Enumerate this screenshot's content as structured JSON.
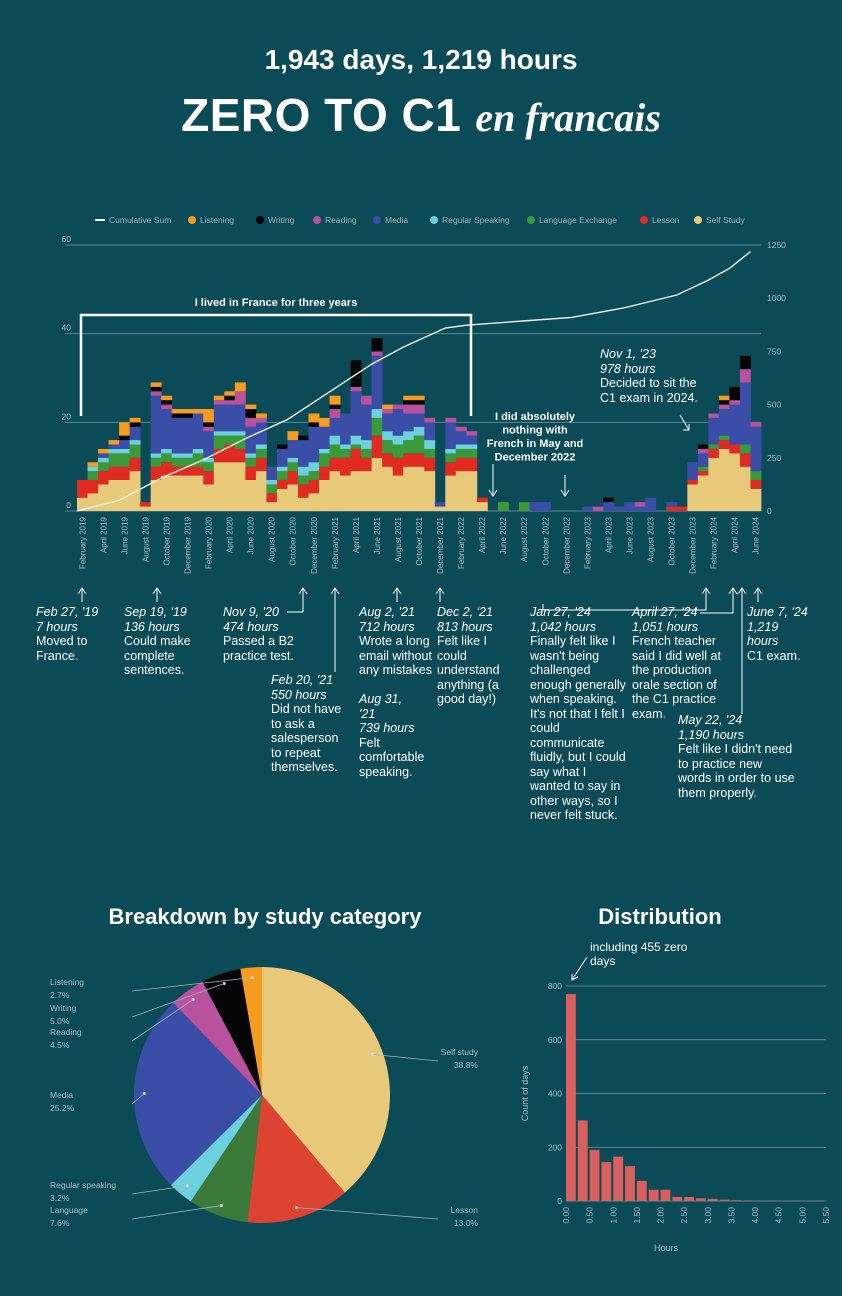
{
  "header": {
    "subtitle": "1,943 days, 1,219 hours",
    "title_main": "ZERO TO C1",
    "title_script": "en francais"
  },
  "colors": {
    "background": "#0b4a57",
    "self_study": "#e8c97a",
    "lesson": "#e02a22",
    "language_exchange": "#3a9a3a",
    "regular_speaking": "#6dd0de",
    "media": "#3a4ea8",
    "reading": "#b8529e",
    "writing": "#050505",
    "listening": "#f59c1e",
    "hist_bar": "#d9605e"
  },
  "legend": [
    "Cumulative Sum",
    "Listening",
    "Writing",
    "Reading",
    "Media",
    "Regular Speaking",
    "Language Exchange",
    "Lesson",
    "Self Study"
  ],
  "chart_data": [
    {
      "type": "bar",
      "stacked": true,
      "title": "",
      "ylim": [
        0,
        60
      ],
      "y2lim": [
        0,
        1250
      ],
      "y_ticks": [
        0,
        20,
        40,
        60
      ],
      "y2_ticks": [
        0,
        250,
        500,
        750,
        1000,
        1250
      ],
      "x_tick_labels": [
        "February 2019",
        "April 2019",
        "June 2019",
        "August 2019",
        "October 2019",
        "December 2019",
        "February 2020",
        "April 2020",
        "June 2020",
        "August 2020",
        "October 2020",
        "December 2020",
        "February 2021",
        "April 2021",
        "June 2021",
        "August 2021",
        "October 2021",
        "December 2021",
        "February 2022",
        "April 2022",
        "June 2022",
        "August 2022",
        "October 2022",
        "December 2022",
        "February 2023",
        "April 2023",
        "June 2023",
        "August 2023",
        "October 2023",
        "December 2023",
        "February 2024",
        "April 2024",
        "June 2024"
      ],
      "categories": [
        "2019-02",
        "2019-03",
        "2019-04",
        "2019-05",
        "2019-06",
        "2019-07",
        "2019-08",
        "2019-09",
        "2019-10",
        "2019-11",
        "2019-12",
        "2020-01",
        "2020-02",
        "2020-03",
        "2020-04",
        "2020-05",
        "2020-06",
        "2020-07",
        "2020-08",
        "2020-09",
        "2020-10",
        "2020-11",
        "2020-12",
        "2021-01",
        "2021-02",
        "2021-03",
        "2021-04",
        "2021-05",
        "2021-06",
        "2021-07",
        "2021-08",
        "2021-09",
        "2021-10",
        "2021-11",
        "2021-12",
        "2022-01",
        "2022-02",
        "2022-03",
        "2022-04",
        "2022-05",
        "2022-06",
        "2022-07",
        "2022-08",
        "2022-09",
        "2022-10",
        "2022-11",
        "2022-12",
        "2023-01",
        "2023-02",
        "2023-03",
        "2023-04",
        "2023-05",
        "2023-06",
        "2023-07",
        "2023-08",
        "2023-09",
        "2023-10",
        "2023-11",
        "2023-12",
        "2024-01",
        "2024-02",
        "2024-03",
        "2024-04",
        "2024-05",
        "2024-06"
      ],
      "series": [
        {
          "name": "Self Study",
          "values": [
            3,
            4,
            6,
            7,
            7,
            9,
            1,
            7,
            8,
            8,
            8,
            8,
            6,
            11,
            11,
            11,
            7,
            9,
            2,
            5,
            6,
            3,
            4,
            7,
            9,
            8,
            9,
            9,
            12,
            10,
            8,
            10,
            10,
            9,
            1,
            8,
            9,
            9,
            2,
            0,
            0,
            0,
            0,
            0,
            0,
            0,
            0,
            0,
            0,
            0,
            0,
            0,
            0,
            0,
            0,
            0,
            0,
            0,
            6,
            8,
            12,
            14,
            13,
            10,
            5
          ]
        },
        {
          "name": "Lesson",
          "values": [
            4,
            3,
            3,
            3,
            3,
            3,
            1,
            3,
            3,
            2,
            2,
            2,
            3,
            3,
            4,
            3,
            3,
            3,
            2,
            2,
            3,
            3,
            3,
            3,
            3,
            4,
            5,
            3,
            5,
            3,
            4,
            3,
            3,
            3,
            0,
            3,
            3,
            3,
            1,
            0,
            0,
            0,
            0,
            0,
            0,
            0,
            0,
            0,
            0,
            0,
            0,
            0,
            0,
            0,
            0,
            0,
            1,
            1,
            1,
            1,
            2,
            2,
            2,
            3,
            2
          ]
        },
        {
          "name": "Language Exchange",
          "values": [
            0,
            2,
            2,
            3,
            3,
            3,
            0,
            2,
            2,
            2,
            2,
            3,
            2,
            3,
            2,
            3,
            2,
            2,
            2,
            2,
            2,
            2,
            2,
            3,
            3,
            2,
            1,
            2,
            4,
            3,
            3,
            3,
            4,
            2,
            0,
            2,
            2,
            2,
            0,
            0,
            2,
            0,
            2,
            0,
            0,
            0,
            0,
            0,
            0,
            0,
            0,
            0,
            0,
            0,
            0,
            0,
            0,
            0,
            0,
            1,
            1,
            1,
            0,
            2,
            2
          ]
        },
        {
          "name": "Regular Speaking",
          "values": [
            0,
            1,
            1,
            1,
            1,
            1,
            0,
            1,
            1,
            1,
            1,
            1,
            1,
            1,
            1,
            1,
            1,
            1,
            1,
            1,
            1,
            2,
            2,
            1,
            2,
            1,
            2,
            2,
            2,
            2,
            2,
            2,
            2,
            2,
            0,
            1,
            1,
            1,
            0,
            0,
            0,
            0,
            0,
            0,
            0,
            0,
            0,
            0,
            0,
            0,
            0,
            0,
            0,
            0,
            0,
            0,
            0,
            0,
            0,
            0,
            0,
            0,
            0,
            0,
            0
          ]
        },
        {
          "name": "Media",
          "values": [
            0,
            0,
            1,
            1,
            2,
            3,
            0,
            13,
            9,
            8,
            8,
            8,
            6,
            6,
            6,
            6,
            6,
            5,
            3,
            4,
            4,
            6,
            8,
            5,
            4,
            7,
            10,
            8,
            12,
            4,
            6,
            4,
            3,
            4,
            1,
            6,
            3,
            2,
            0,
            0,
            0,
            0,
            0,
            2,
            2,
            0,
            0,
            0,
            1,
            0,
            2,
            1,
            2,
            1,
            3,
            0,
            1,
            0,
            4,
            3,
            6,
            6,
            9,
            14,
            10
          ]
        },
        {
          "name": "Reading",
          "values": [
            0,
            0,
            0,
            0,
            0,
            0,
            0,
            1,
            1,
            0,
            0,
            0,
            1,
            1,
            1,
            3,
            2,
            1,
            0,
            0,
            0,
            0,
            0,
            0,
            2,
            0,
            1,
            2,
            1,
            1,
            1,
            2,
            2,
            1,
            0,
            1,
            1,
            1,
            0,
            0,
            0,
            0,
            0,
            0,
            0,
            0,
            0,
            0,
            0,
            1,
            0,
            0,
            0,
            1,
            0,
            0,
            0,
            0,
            0,
            1,
            1,
            1,
            1,
            3,
            1
          ]
        },
        {
          "name": "Writing",
          "values": [
            0,
            0,
            0,
            0,
            1,
            1,
            0,
            1,
            1,
            1,
            1,
            0,
            1,
            0,
            1,
            0,
            2,
            0,
            0,
            1,
            0,
            1,
            1,
            0,
            1,
            0,
            6,
            0,
            3,
            0,
            0,
            1,
            1,
            0,
            0,
            0,
            0,
            0,
            0,
            0,
            0,
            0,
            0,
            0,
            0,
            0,
            0,
            0,
            0,
            0,
            1,
            0,
            0,
            0,
            0,
            0,
            0,
            0,
            0,
            1,
            0,
            1,
            3,
            3,
            0
          ]
        },
        {
          "name": "Listening",
          "values": [
            0,
            1,
            1,
            1,
            3,
            1,
            0,
            1,
            1,
            1,
            1,
            1,
            3,
            1,
            1,
            2,
            1,
            1,
            0,
            0,
            2,
            0,
            2,
            2,
            2,
            0,
            0,
            0,
            0,
            1,
            0,
            1,
            1,
            0,
            0,
            0,
            0,
            0,
            0,
            0,
            0,
            0,
            0,
            0,
            0,
            0,
            0,
            0,
            0,
            0,
            0,
            0,
            0,
            0,
            0,
            0,
            0,
            0,
            0,
            0,
            0,
            1,
            0,
            0,
            0
          ]
        }
      ],
      "cumulative_sum": {
        "name": "Cumulative Sum",
        "x": [
          "2019-02",
          "2019-06",
          "2019-10",
          "2020-02",
          "2020-06",
          "2020-10",
          "2021-02",
          "2021-06",
          "2021-09",
          "2022-01",
          "2022-03",
          "2022-09",
          "2023-01",
          "2023-06",
          "2023-11",
          "2024-02",
          "2024-04",
          "2024-06"
        ],
        "values": [
          0,
          50,
          155,
          240,
          340,
          430,
          560,
          690,
          770,
          860,
          873,
          895,
          910,
          955,
          1015,
          1085,
          1140,
          1219
        ]
      },
      "bracket_label": "I lived in France for three years",
      "gap_note": "I did absolutely nothing with French in May and December 2022",
      "annotations": [
        {
          "date": "Feb 27, '19",
          "hours": "7 hours",
          "text": "Moved to France."
        },
        {
          "date": "Sep 19, '19",
          "hours": "136 hours",
          "text": "Could make complete sentences."
        },
        {
          "date": "Nov 9, '20",
          "hours": "474 hours",
          "text": "Passed a B2 practice test."
        },
        {
          "date": "Feb 20, '21",
          "hours": "550 hours",
          "text": "Did not have to ask a salesperson to repeat themselves."
        },
        {
          "date": "Aug 2, '21",
          "hours": "712 hours",
          "text": "Wrote a long email without any mistakes"
        },
        {
          "date": "Aug 31, '21",
          "hours": "739 hours",
          "text": "Felt comfortable speaking."
        },
        {
          "date": "Dec 2, '21",
          "hours": "813 hours",
          "text": "Felt like I could understand anything (a good day!)"
        },
        {
          "date": "Nov 1, '23",
          "hours": "978 hours",
          "text": "Decided to sit the C1 exam in 2024."
        },
        {
          "date": "Jan 27, '24",
          "hours": "1,042 hours",
          "text": "Finally felt like I wasn't being challenged enough generally when speaking. It's not that I felt I could communicate fluidly, but I could say what I wanted to say in other ways, so I never felt stuck."
        },
        {
          "date": "April 27, '24",
          "hours": "1,051 hours",
          "text": "French teacher said I did well at the production orale section of the C1 practice exam."
        },
        {
          "date": "May 22, '24",
          "hours": "1,190 hours",
          "text": "Felt like I didn't need to practice new words in order to use them properly."
        },
        {
          "date": "June 7, '24",
          "hours": "1,219 hours",
          "text": "C1 exam."
        }
      ]
    },
    {
      "type": "pie",
      "title": "Breakdown by study category",
      "slices": [
        {
          "label": "Self study",
          "value": 38.8,
          "pct": "38.8%",
          "color": "#e8c97a"
        },
        {
          "label": "Lesson",
          "value": 13.0,
          "pct": "13.0%",
          "color": "#dd4332"
        },
        {
          "label": "Language",
          "value": 7.6,
          "pct": "7.6%",
          "color": "#3c7a3a"
        },
        {
          "label": "Regular speaking",
          "value": 3.2,
          "pct": "3.2%",
          "color": "#6dd0de"
        },
        {
          "label": "Media",
          "value": 25.2,
          "pct": "25.2%",
          "color": "#3a4ea8"
        },
        {
          "label": "Reading",
          "value": 4.5,
          "pct": "4.5%",
          "color": "#b8529e"
        },
        {
          "label": "Writing",
          "value": 5.0,
          "pct": "5.0%",
          "color": "#050505"
        },
        {
          "label": "Listening",
          "value": 2.7,
          "pct": "2.7%",
          "color": "#f59c1e"
        }
      ]
    },
    {
      "type": "bar",
      "title": "Distribution",
      "xlabel": "Hours",
      "ylabel": "Count of days",
      "ylim": [
        0,
        800
      ],
      "y_ticks": [
        0,
        200,
        400,
        600,
        800
      ],
      "x_tick_labels": [
        "0.00",
        "0.50",
        "1.00",
        "1.50",
        "2.00",
        "2.50",
        "3.00",
        "3.50",
        "4.00",
        "4.50",
        "5.00",
        "5.50"
      ],
      "bin_width": 0.25,
      "x": [
        0,
        0.25,
        0.5,
        0.75,
        1.0,
        1.25,
        1.5,
        1.75,
        2.0,
        2.25,
        2.5,
        2.75,
        3.0,
        3.25,
        3.5,
        3.75,
        4.0,
        4.25,
        4.5,
        4.75,
        5.0,
        5.25
      ],
      "values": [
        770,
        300,
        190,
        145,
        165,
        130,
        75,
        42,
        42,
        15,
        15,
        10,
        8,
        5,
        3,
        2,
        1,
        1,
        1,
        1,
        1,
        1
      ],
      "annotation": "including 455 zero days"
    }
  ]
}
